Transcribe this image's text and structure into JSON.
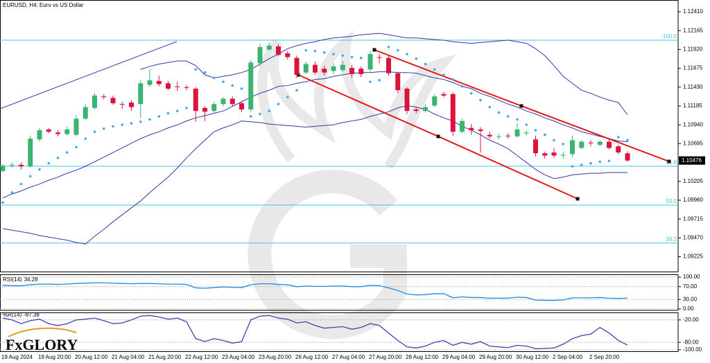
{
  "chart_data": [
    {
      "type": "candlestick",
      "title": "EURUSD, H4: Euro vs US Dollar",
      "categories": [
        "19 Aug 2024",
        null,
        null,
        null,
        "19 Aug 20:00",
        null,
        null,
        null,
        "20 Aug 12:00",
        null,
        null,
        null,
        "21 Aug 04:00",
        null,
        null,
        null,
        "21 Aug 20:00",
        null,
        null,
        null,
        "22 Aug 12:00",
        null,
        null,
        null,
        "23 Aug 04:00",
        null,
        null,
        null,
        "23 Aug 20:00",
        null,
        null,
        null,
        "26 Aug 12:00",
        null,
        null,
        null,
        "27 Aug 04:00",
        null,
        null,
        null,
        "27 Aug 20:00",
        null,
        null,
        null,
        "28 Aug 12:00",
        null,
        null,
        null,
        "29 Aug 04:00",
        null,
        null,
        null,
        "29 Aug 20:00",
        null,
        null,
        null,
        "30 Aug 12:00",
        null,
        null,
        null,
        "2 Sep 04:00",
        null,
        null,
        null,
        "2 Sep 20:00",
        null,
        null,
        null,
        null
      ],
      "open": [
        1.1034,
        1.1041,
        1.1042,
        1.104,
        1.1075,
        1.1088,
        1.1084,
        1.1082,
        1.1081,
        1.1102,
        1.1116,
        1.1131,
        1.1129,
        1.1121,
        1.1123,
        1.1121,
        1.1146,
        1.1151,
        1.1148,
        1.1144,
        1.1143,
        1.1141,
        1.1116,
        1.1112,
        1.1121,
        1.1128,
        1.1122,
        1.1114,
        1.1174,
        1.1192,
        1.1196,
        1.1187,
        1.1181,
        1.1162,
        1.1172,
        1.1167,
        1.1164,
        1.1165,
        1.1168,
        1.1167,
        1.1166,
        1.1182,
        1.1181,
        1.1161,
        1.1141,
        1.1114,
        1.1112,
        1.1119,
        1.1134,
        1.1134,
        1.1085,
        1.109,
        1.1088,
        1.1081,
        1.1079,
        1.108,
        1.1079,
        1.1083,
        1.1075,
        1.1057,
        1.1058,
        1.1054,
        1.1056,
        1.1064,
        1.1071,
        1.1068,
        1.1072,
        1.1066,
        1.1057
      ],
      "high": [
        1.1043,
        1.1045,
        1.1045,
        1.108,
        1.109,
        1.109,
        1.1087,
        1.1092,
        1.1107,
        1.1121,
        1.1135,
        1.1134,
        1.1132,
        1.1124,
        1.1126,
        1.1152,
        1.1166,
        1.1158,
        1.1151,
        1.115,
        1.1146,
        1.1143,
        1.1118,
        1.1124,
        1.113,
        1.1131,
        1.1124,
        1.1178,
        1.1199,
        1.1201,
        1.1199,
        1.119,
        1.1184,
        1.1176,
        1.1176,
        1.1171,
        1.1174,
        1.1177,
        1.1172,
        1.117,
        1.119,
        1.1186,
        1.1184,
        1.1163,
        1.1143,
        1.1117,
        1.1121,
        1.1134,
        1.1137,
        1.1136,
        1.1102,
        1.1095,
        1.1091,
        1.1085,
        1.1082,
        1.1083,
        1.1096,
        1.1087,
        1.108,
        1.1059,
        1.1064,
        1.1059,
        1.108,
        1.1074,
        1.1074,
        1.1074,
        1.1076,
        1.1068,
        1.106
      ],
      "low": [
        1.1032,
        1.1038,
        1.1036,
        1.1038,
        1.1072,
        1.1083,
        1.1079,
        1.108,
        1.1079,
        1.11,
        1.1114,
        1.1127,
        1.112,
        1.1115,
        1.1112,
        1.1103,
        1.1143,
        1.1144,
        1.1139,
        1.1138,
        1.1139,
        1.1098,
        1.1099,
        1.111,
        1.1118,
        1.1118,
        1.1111,
        1.1111,
        1.117,
        1.119,
        1.1183,
        1.1179,
        1.1155,
        1.116,
        1.1159,
        1.1158,
        1.116,
        1.1163,
        1.1155,
        1.1156,
        1.1163,
        1.1174,
        1.1158,
        1.1135,
        1.1108,
        1.1109,
        1.111,
        1.1117,
        1.113,
        1.108,
        1.1083,
        1.1081,
        1.1058,
        1.1076,
        1.1075,
        1.1076,
        1.1077,
        1.108,
        1.1053,
        1.105,
        1.1051,
        1.105,
        1.1052,
        1.1062,
        1.1066,
        1.1066,
        1.1062,
        1.1056,
        1.1046
      ],
      "close": [
        1.1041,
        1.1042,
        1.104,
        1.1076,
        1.1087,
        1.1085,
        1.1082,
        1.1088,
        1.1102,
        1.1117,
        1.1132,
        1.113,
        1.1122,
        1.112,
        1.1117,
        1.1148,
        1.1152,
        1.1147,
        1.1141,
        1.1143,
        1.1142,
        1.1112,
        1.1111,
        1.1121,
        1.1128,
        1.1121,
        1.1114,
        1.1175,
        1.1195,
        1.1197,
        1.1185,
        1.1182,
        1.1159,
        1.1173,
        1.1162,
        1.1162,
        1.117,
        1.1172,
        1.116,
        1.116,
        1.1186,
        1.1181,
        1.1161,
        1.1139,
        1.1112,
        1.1112,
        1.1117,
        1.1131,
        1.1132,
        1.1085,
        1.1099,
        1.1087,
        1.1086,
        1.1079,
        1.1079,
        1.1079,
        1.1088,
        1.1084,
        1.1057,
        1.1054,
        1.1054,
        1.1055,
        1.1074,
        1.1072,
        1.107,
        1.1072,
        1.1064,
        1.1058,
        1.10476
      ],
      "up_color": "#3cb371",
      "down_color": "#dc143c",
      "ylim": [
        1.09032,
        1.12563
      ],
      "yticks": [
        {
          "value": 1.1241,
          "label": "1.12410"
        },
        {
          "value": 1.12165,
          "label": "1.12165"
        },
        {
          "value": 1.1192,
          "label": "1.11920"
        },
        {
          "value": 1.11675,
          "label": "1.11675"
        },
        {
          "value": 1.1143,
          "label": "1.11430"
        },
        {
          "value": 1.11185,
          "label": "1.11185"
        },
        {
          "value": 1.1094,
          "label": "1.10940"
        },
        {
          "value": 1.10695,
          "label": "1.10695"
        },
        {
          "value": 1.10205,
          "label": "1.10205"
        },
        {
          "value": 1.0996,
          "label": "1.09960"
        },
        {
          "value": 1.09715,
          "label": "1.09715"
        },
        {
          "value": 1.0947,
          "label": "1.09470"
        },
        {
          "value": 1.09225,
          "label": "1.09225"
        }
      ],
      "grid": false,
      "bands": [
        {
          "color": "#3535a8",
          "values": [
            null,
            null,
            null,
            null,
            null,
            null,
            null,
            null,
            null,
            null,
            null,
            null,
            null,
            null,
            null,
            1.1166,
            1.117,
            1.1173,
            1.1175,
            1.1177,
            1.1177,
            1.1171,
            1.1159,
            1.1155,
            1.1157,
            1.1159,
            1.1162,
            1.1166,
            1.1173,
            1.118,
            1.1186,
            1.1193,
            1.1197,
            1.12,
            1.1202,
            1.1205,
            1.1207,
            1.1208,
            1.1209,
            1.1211,
            1.1212,
            1.1213,
            1.1211,
            1.1209,
            1.1207,
            1.1207,
            1.1206,
            1.1205,
            1.1204,
            1.1202,
            1.1201,
            1.12,
            1.1201,
            1.1202,
            1.1203,
            1.1204,
            1.1202,
            1.12,
            1.1193,
            1.1184,
            1.1171,
            1.1157,
            1.1148,
            1.1139,
            1.1135,
            1.113,
            1.1126,
            1.1123,
            1.1107
          ]
        },
        {
          "color": "#3535a8",
          "values": [
            1.0999,
            1.1004,
            1.1008,
            1.1013,
            1.1017,
            1.1022,
            1.1026,
            1.1031,
            1.1035,
            1.104,
            1.1046,
            1.1052,
            1.1058,
            1.1064,
            1.107,
            1.1076,
            1.1081,
            1.1085,
            1.109,
            1.1094,
            1.1099,
            1.1103,
            1.1106,
            1.1109,
            1.1112,
            1.1118,
            1.1124,
            1.113,
            1.1135,
            1.1139,
            1.1144,
            1.1145,
            1.1148,
            1.115,
            1.1153,
            1.1154,
            1.1157,
            1.1159,
            1.1161,
            1.1162,
            1.1162,
            1.1163,
            1.1163,
            1.1162,
            1.1162,
            1.1161,
            1.1158,
            1.1155,
            1.1153,
            1.1149,
            1.1144,
            1.1141,
            1.1135,
            1.1131,
            1.1126,
            1.1121,
            1.1117,
            1.1112,
            1.1108,
            1.1103,
            1.1099,
            1.1094,
            1.109,
            1.1085,
            1.1082,
            1.1079,
            1.1076,
            1.1073,
            1.1072
          ]
        },
        {
          "color": "#3535a8",
          "values": [
            1.0959,
            1.0957,
            1.0955,
            1.0953,
            1.095,
            1.0948,
            1.0946,
            1.0944,
            1.0941,
            1.0939,
            1.0949,
            1.0958,
            1.0968,
            1.0977,
            1.0986,
            1.0995,
            1.1006,
            1.1016,
            1.1026,
            1.1038,
            1.1051,
            1.1063,
            1.1074,
            1.1085,
            1.109,
            1.1094,
            1.1099,
            1.1098,
            1.1097,
            1.1095,
            1.1094,
            1.1093,
            1.1092,
            1.1091,
            1.1092,
            1.1093,
            1.1094,
            1.1097,
            1.1099,
            1.1101,
            1.1105,
            1.1108,
            1.1111,
            1.1116,
            1.1119,
            1.1117,
            1.1114,
            1.1108,
            1.1103,
            1.1099,
            1.1092,
            1.1087,
            1.1081,
            1.1074,
            1.1069,
            1.1063,
            1.1054,
            1.1045,
            1.1036,
            1.1029,
            1.1024,
            1.1026,
            1.1029,
            1.103,
            1.1031,
            1.1031,
            1.1032,
            1.1032,
            1.1032
          ]
        }
      ],
      "sar": {
        "color": "#3fa9f5",
        "values": [
          1.0993,
          1.1006,
          1.1017,
          1.1027,
          1.1036,
          1.1044,
          1.1051,
          1.1058,
          1.1065,
          1.1076,
          1.1085,
          1.1089,
          1.1092,
          1.1094,
          1.1096,
          1.1098,
          1.1101,
          1.1105,
          1.1109,
          1.1112,
          1.1116,
          1.1166,
          1.1162,
          1.1155,
          1.115,
          1.1145,
          1.1141,
          1.1105,
          1.1108,
          1.1112,
          1.1121,
          1.113,
          1.1139,
          1.1191,
          1.119,
          1.1188,
          1.1186,
          1.1184,
          1.1182,
          1.1181,
          1.115,
          1.1152,
          1.1195,
          1.1191,
          1.1186,
          1.118,
          1.1173,
          1.1166,
          1.1159,
          1.1153,
          1.1144,
          1.1135,
          1.1126,
          1.1117,
          1.111,
          1.1105,
          1.1101,
          1.1094,
          1.1087,
          1.1081,
          1.1074,
          1.1069,
          1.104,
          1.1042,
          1.1044,
          1.1046,
          1.1047,
          1.1078,
          1.1074
        ]
      },
      "levels": [
        {
          "label": "100.0",
          "value": 1.12041
        },
        {
          "label": "61.8",
          "value": 1.10401
        },
        {
          "label": "50.0",
          "value": 1.09897
        },
        {
          "label": "38.2",
          "value": 1.09402
        }
      ],
      "level_color": "#40c4e0",
      "trendlines": [
        {
          "color": "#3535a8",
          "anchors": false,
          "x": [
            -0.3,
            18.94
          ],
          "y": [
            1.11149,
            1.12023
          ]
        },
        {
          "color": "#e41b1b",
          "anchors": true,
          "x": [
            40.45,
            56.45,
            72.53
          ],
          "y": [
            1.11915,
            1.11185,
            1.10464
          ]
        },
        {
          "color": "#e41b1b",
          "anchors": true,
          "x": [
            32.15,
            47.4,
            62.57
          ],
          "y": [
            1.1159,
            1.10789,
            1.09978
          ]
        }
      ]
    },
    {
      "type": "line",
      "title": "RSI(14)",
      "series": [
        {
          "color": "#1e88e5",
          "values": [
            74,
            73,
            73,
            76,
            78,
            78,
            77,
            78,
            80,
            81,
            82,
            82,
            81,
            80,
            79,
            80,
            80,
            79,
            78,
            78,
            77,
            66,
            65,
            67,
            69,
            68,
            67,
            76,
            79,
            79,
            77,
            76,
            70,
            72,
            71,
            71,
            72,
            72,
            70,
            70,
            74,
            73,
            66,
            58,
            47,
            44,
            45,
            48,
            48,
            35,
            38,
            36,
            36,
            34,
            34,
            34,
            37,
            36,
            28,
            27,
            27,
            28,
            35,
            35,
            35,
            36,
            34,
            33,
            34.28
          ]
        }
      ],
      "ylim": [
        0,
        100
      ],
      "yticks": [
        {
          "value": 100,
          "label": "100.00"
        },
        {
          "value": 70,
          "label": "70.00"
        },
        {
          "value": 30,
          "label": "30.00"
        },
        {
          "value": 0,
          "label": "0.00"
        }
      ],
      "grid": true
    },
    {
      "type": "line",
      "title": "%R(14)",
      "series": [
        {
          "color": "#4040b0",
          "values": [
            -15,
            -20,
            -30,
            -22,
            -18,
            -30,
            -35,
            -30,
            -20,
            -18,
            -15,
            -22,
            -30,
            -28,
            -20,
            -10,
            -8,
            -12,
            -18,
            -15,
            -25,
            -70,
            -78,
            -70,
            -75,
            -82,
            -78,
            -20,
            -10,
            -8,
            -15,
            -18,
            -28,
            -25,
            -35,
            -42,
            -40,
            -38,
            -45,
            -40,
            -30,
            -35,
            -55,
            -75,
            -92,
            -95,
            -90,
            -80,
            -75,
            -88,
            -80,
            -85,
            -78,
            -90,
            -92,
            -94,
            -88,
            -90,
            -97,
            -96,
            -95,
            -85,
            -70,
            -62,
            -58,
            -40,
            -55,
            -75,
            -87.38
          ]
        }
      ],
      "ylim": [
        -100,
        0
      ],
      "yticks": [
        {
          "value": -20,
          "label": "-20.00"
        },
        {
          "value": -80,
          "label": "-80.00"
        },
        {
          "value": -100,
          "label": "-100.00"
        }
      ],
      "grid": true
    }
  ],
  "branding": "FxGLORY"
}
